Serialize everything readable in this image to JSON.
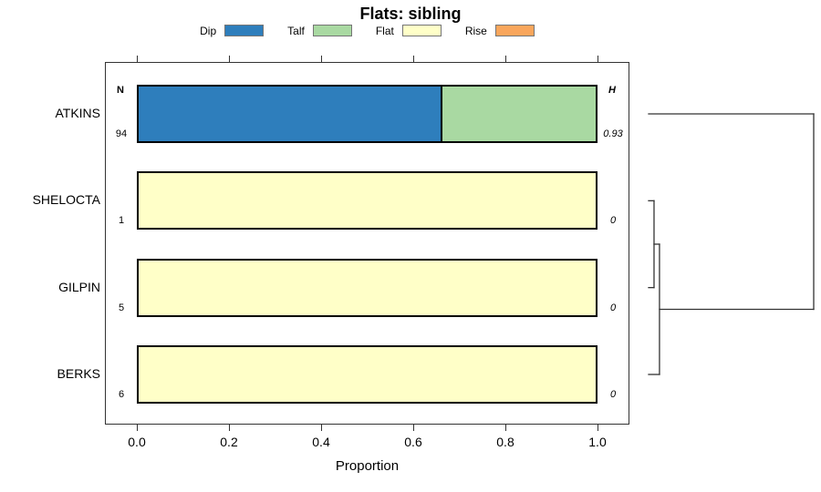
{
  "chart_data": {
    "type": "bar",
    "stacked": true,
    "orientation": "horizontal",
    "title": "Flats: sibling",
    "xlabel": "Proportion",
    "xlim": [
      0,
      1
    ],
    "x_ticks": [
      "0.0",
      "0.2",
      "0.4",
      "0.6",
      "0.8",
      "1.0"
    ],
    "grid": false,
    "legend_position": "top",
    "classes": [
      {
        "label": "Dip",
        "color": "#2E7EBC"
      },
      {
        "label": "Talf",
        "color": "#A9D9A2"
      },
      {
        "label": "Flat",
        "color": "#FFFFC8"
      },
      {
        "label": "Rise",
        "color": "#F9A65C"
      }
    ],
    "n_header": "N",
    "h_header": "H",
    "rows": [
      {
        "name": "ATKINS",
        "n": "94",
        "h": "0.93",
        "segments": [
          {
            "class": "Dip",
            "value": 0.66
          },
          {
            "class": "Talf",
            "value": 0.34
          }
        ]
      },
      {
        "name": "SHELOCTA",
        "n": "1",
        "h": "0",
        "segments": [
          {
            "class": "Flat",
            "value": 1
          }
        ]
      },
      {
        "name": "GILPIN",
        "n": "5",
        "h": "0",
        "segments": [
          {
            "class": "Flat",
            "value": 1
          }
        ]
      },
      {
        "name": "BERKS",
        "n": "6",
        "h": "0",
        "segments": [
          {
            "class": "Flat",
            "value": 1
          }
        ]
      }
    ],
    "dendrogram": {
      "orientation": "right",
      "tree": {
        "height": 1.0,
        "children": [
          {
            "leaf": "ATKINS"
          },
          {
            "height": 0.066,
            "children": [
              {
                "height": 0.033,
                "children": [
                  {
                    "leaf": "SHELOCTA"
                  },
                  {
                    "leaf": "GILPIN"
                  }
                ]
              },
              {
                "leaf": "BERKS"
              }
            ]
          }
        ]
      }
    }
  }
}
